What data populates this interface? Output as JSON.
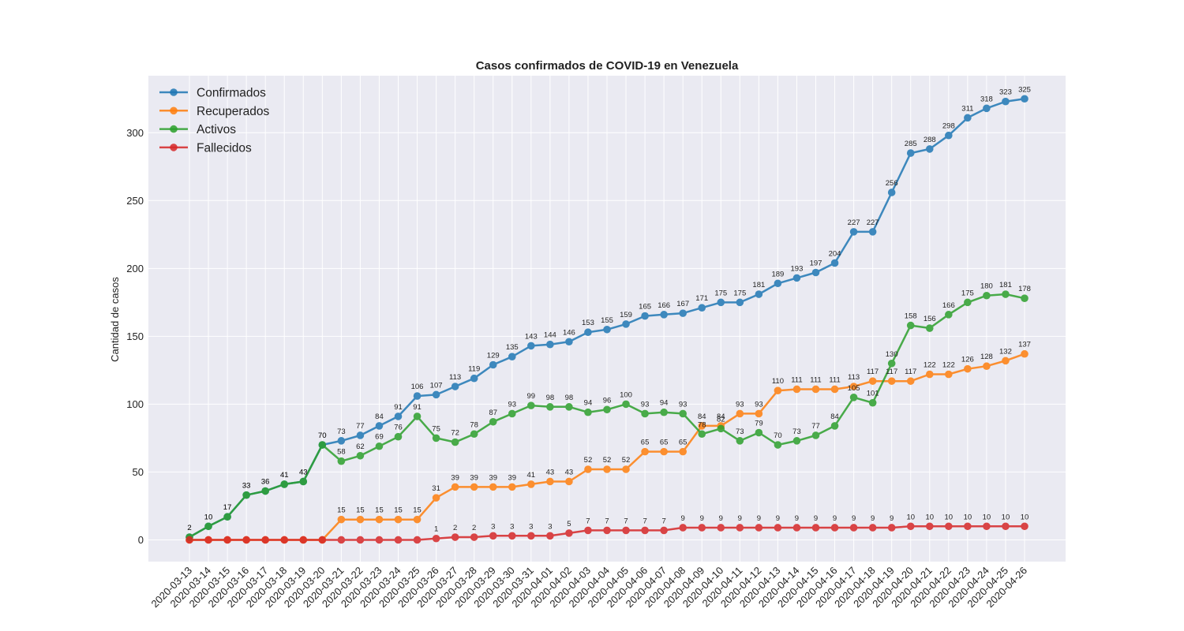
{
  "chart_data": {
    "type": "line",
    "title": "Casos confirmados de COVID-19 en Venezuela",
    "xlabel": "",
    "ylabel": "Cantidad de casos",
    "ylim": [
      -16,
      342
    ],
    "yticks": [
      "0",
      "50",
      "100",
      "150",
      "200",
      "250",
      "300"
    ],
    "grid": true,
    "legend_position": "top-left",
    "x": [
      "2020-03-13",
      "2020-03-14",
      "2020-03-15",
      "2020-03-16",
      "2020-03-17",
      "2020-03-18",
      "2020-03-19",
      "2020-03-20",
      "2020-03-21",
      "2020-03-22",
      "2020-03-23",
      "2020-03-24",
      "2020-03-25",
      "2020-03-26",
      "2020-03-27",
      "2020-03-28",
      "2020-03-29",
      "2020-03-30",
      "2020-03-31",
      "2020-04-01",
      "2020-04-02",
      "2020-04-03",
      "2020-04-04",
      "2020-04-05",
      "2020-04-06",
      "2020-04-07",
      "2020-04-08",
      "2020-04-09",
      "2020-04-10",
      "2020-04-11",
      "2020-04-12",
      "2020-04-13",
      "2020-04-14",
      "2020-04-15",
      "2020-04-16",
      "2020-04-17",
      "2020-04-18",
      "2020-04-19",
      "2020-04-20",
      "2020-04-21",
      "2020-04-22",
      "2020-04-23",
      "2020-04-24",
      "2020-04-25",
      "2020-04-26"
    ],
    "series": [
      {
        "name": "Confirmados",
        "color": "#1f77b4",
        "values": [
          2,
          10,
          17,
          33,
          36,
          41,
          43,
          70,
          73,
          77,
          84,
          91,
          106,
          107,
          113,
          119,
          129,
          135,
          143,
          144,
          146,
          153,
          155,
          159,
          165,
          166,
          167,
          171,
          175,
          175,
          181,
          189,
          193,
          197,
          204,
          227,
          227,
          256,
          285,
          288,
          298,
          311,
          318,
          323,
          325
        ]
      },
      {
        "name": "Recuperados",
        "color": "#ff7f0e",
        "values": [
          0,
          0,
          0,
          0,
          0,
          0,
          0,
          0,
          15,
          15,
          15,
          15,
          15,
          31,
          39,
          39,
          39,
          39,
          41,
          43,
          43,
          52,
          52,
          52,
          65,
          65,
          65,
          84,
          84,
          93,
          93,
          110,
          111,
          111,
          111,
          113,
          117,
          117,
          117,
          122,
          122,
          126,
          128,
          132,
          137
        ]
      },
      {
        "name": "Activos",
        "color": "#2ca02c",
        "values": [
          2,
          10,
          17,
          33,
          36,
          41,
          43,
          70,
          58,
          62,
          69,
          76,
          91,
          75,
          72,
          78,
          87,
          93,
          99,
          98,
          98,
          94,
          96,
          100,
          93,
          94,
          93,
          78,
          82,
          73,
          79,
          70,
          73,
          77,
          84,
          105,
          101,
          130,
          158,
          156,
          166,
          175,
          180,
          181,
          178
        ]
      },
      {
        "name": "Fallecidos",
        "color": "#d62728",
        "values": [
          0,
          0,
          0,
          0,
          0,
          0,
          0,
          0,
          0,
          0,
          0,
          0,
          0,
          1,
          2,
          2,
          3,
          3,
          3,
          3,
          5,
          7,
          7,
          7,
          7,
          7,
          9,
          9,
          9,
          9,
          9,
          9,
          9,
          9,
          9,
          9,
          9,
          9,
          10,
          10,
          10,
          10,
          10,
          10,
          10
        ]
      }
    ]
  }
}
